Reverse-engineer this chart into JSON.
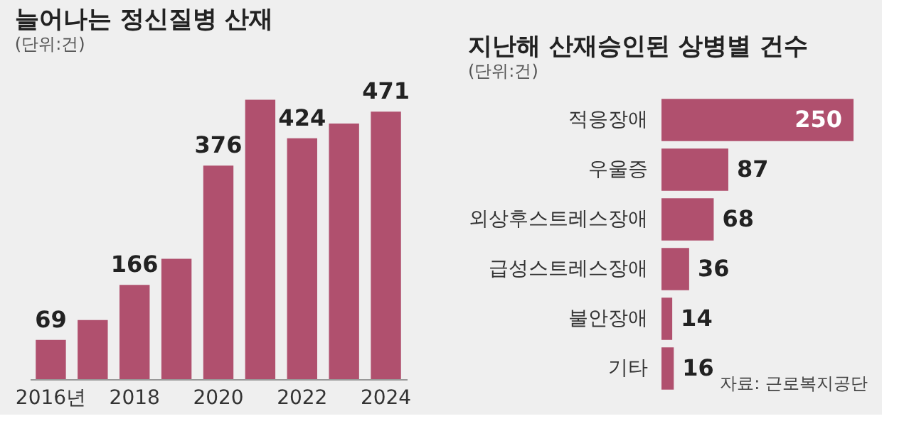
{
  "chart_data": [
    {
      "type": "bar",
      "title": "늘어나는 정신질병 산재",
      "subtitle": "(단위:건)",
      "categories": [
        "2016년",
        null,
        "2018",
        null,
        "2020",
        null,
        "2022",
        null,
        "2024"
      ],
      "values": [
        69,
        104,
        166,
        212,
        376,
        492,
        424,
        450,
        471
      ],
      "value_labels": [
        "69",
        null,
        "166",
        null,
        "376",
        null,
        "424",
        null,
        "471"
      ],
      "color": "#b0506e",
      "ylim": [
        0,
        500
      ],
      "tick_labels": "x",
      "grid": false
    },
    {
      "type": "bar",
      "orientation": "horizontal",
      "title": "지난해 산재승인된 상병별 건수",
      "subtitle": "(단위:건)",
      "categories": [
        "적응장애",
        "우울증",
        "외상후스트레스장애",
        "급성스트레스장애",
        "불안장애",
        "기타"
      ],
      "values": [
        250,
        87,
        68,
        36,
        14,
        16
      ],
      "data_labels": true,
      "color": "#b0506e",
      "xlim": [
        0,
        250
      ],
      "tick_labels": "y",
      "grid": false,
      "annotations": [
        "자료: 근로복지공단"
      ]
    }
  ]
}
